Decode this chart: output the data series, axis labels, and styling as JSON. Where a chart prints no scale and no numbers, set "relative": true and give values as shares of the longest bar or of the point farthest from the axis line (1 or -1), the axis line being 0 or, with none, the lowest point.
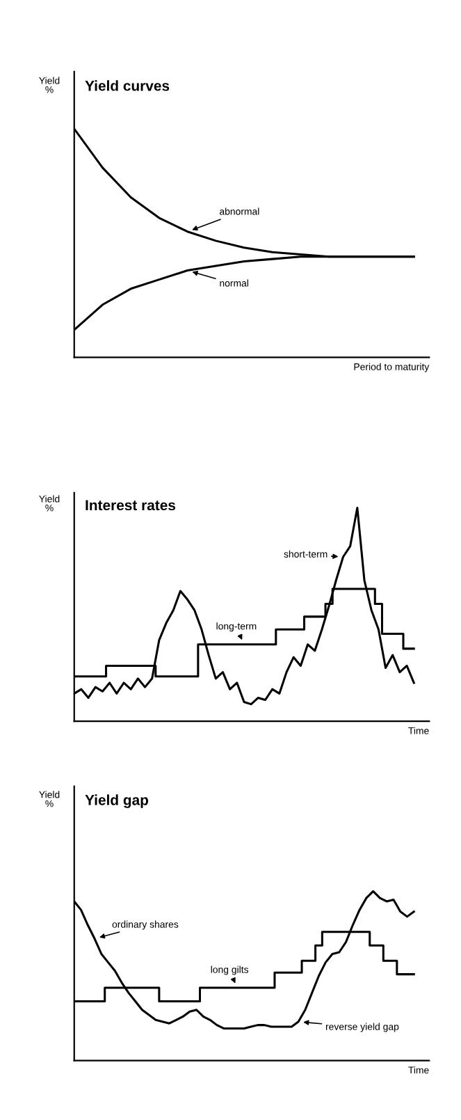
{
  "chart_data": [
    {
      "type": "line",
      "title": "Yield curves",
      "ylabel": "Yield\n%",
      "xlabel": "Period to maturity",
      "relative": true,
      "categories": [
        null,
        null,
        null,
        null,
        null,
        null,
        null,
        null,
        null,
        null,
        null,
        null,
        null
      ],
      "series": [
        {
          "name": "abnormal",
          "color": "#000000",
          "values": [
            1.0,
            0.83,
            0.7,
            0.61,
            0.55,
            0.51,
            0.48,
            0.46,
            0.45,
            0.44,
            0.44,
            0.44,
            0.44
          ]
        },
        {
          "name": "normal",
          "color": "#000000",
          "values": [
            0.12,
            0.23,
            0.3,
            0.34,
            0.38,
            0.4,
            0.42,
            0.43,
            0.44,
            0.44,
            0.44,
            0.44,
            0.44
          ]
        }
      ]
    },
    {
      "type": "line",
      "title": "Interest rates",
      "ylabel": "Yield\n%",
      "xlabel": "Time",
      "relative": true,
      "categories": [
        null,
        null,
        null,
        null,
        null,
        null,
        null,
        null,
        null,
        null,
        null,
        null,
        null,
        null,
        null,
        null,
        null,
        null,
        null,
        null,
        null,
        null,
        null,
        null,
        null,
        null,
        null,
        null,
        null,
        null,
        null,
        null,
        null,
        null,
        null,
        null,
        null,
        null,
        null,
        null,
        null,
        null,
        null,
        null,
        null,
        null,
        null,
        null,
        null
      ],
      "series": [
        {
          "name": "short-term",
          "color": "#000000",
          "values": [
            0.13,
            0.15,
            0.11,
            0.16,
            0.14,
            0.18,
            0.13,
            0.18,
            0.15,
            0.2,
            0.16,
            0.2,
            0.38,
            0.46,
            0.52,
            0.61,
            0.57,
            0.52,
            0.43,
            0.31,
            0.2,
            0.23,
            0.15,
            0.18,
            0.09,
            0.08,
            0.11,
            0.1,
            0.15,
            0.13,
            0.23,
            0.3,
            0.26,
            0.36,
            0.33,
            0.43,
            0.54,
            0.66,
            0.77,
            0.82,
            1.0,
            0.66,
            0.52,
            0.43,
            0.25,
            0.31,
            0.23,
            0.26,
            0.18
          ]
        },
        {
          "name": "long-term",
          "type": "step",
          "color": "#000000",
          "values": [
            0.21,
            0.21,
            0.21,
            0.21,
            0.21,
            0.26,
            0.26,
            0.26,
            0.26,
            0.26,
            0.26,
            0.26,
            0.21,
            0.21,
            0.21,
            0.21,
            0.21,
            0.21,
            0.36,
            0.36,
            0.36,
            0.36,
            0.36,
            0.36,
            0.36,
            0.36,
            0.36,
            0.36,
            0.36,
            0.43,
            0.43,
            0.43,
            0.43,
            0.49,
            0.49,
            0.49,
            0.55,
            0.62,
            0.62,
            0.62,
            0.62,
            0.62,
            0.62,
            0.55,
            0.41,
            0.41,
            0.41,
            0.34,
            0.34
          ]
        }
      ]
    },
    {
      "type": "line",
      "title": "Yield gap",
      "ylabel": "Yield\n%",
      "xlabel": "Time",
      "relative": true,
      "categories": [
        null,
        null,
        null,
        null,
        null,
        null,
        null,
        null,
        null,
        null,
        null,
        null,
        null,
        null,
        null,
        null,
        null,
        null,
        null,
        null,
        null,
        null,
        null,
        null,
        null,
        null,
        null,
        null,
        null,
        null,
        null,
        null,
        null,
        null,
        null,
        null,
        null,
        null,
        null,
        null,
        null,
        null,
        null,
        null,
        null,
        null,
        null,
        null,
        null,
        null,
        null
      ],
      "series": [
        {
          "name": "ordinary shares",
          "color": "#000000",
          "values": [
            0.94,
            0.89,
            0.8,
            0.72,
            0.63,
            0.58,
            0.53,
            0.46,
            0.4,
            0.35,
            0.3,
            0.27,
            0.24,
            0.23,
            0.22,
            0.24,
            0.26,
            0.29,
            0.3,
            0.26,
            0.24,
            0.21,
            0.19,
            0.19,
            0.19,
            0.19,
            0.2,
            0.21,
            0.21,
            0.2,
            0.2,
            0.2,
            0.2,
            0.23,
            0.3,
            0.4,
            0.5,
            0.58,
            0.63,
            0.64,
            0.7,
            0.8,
            0.89,
            0.96,
            1.0,
            0.96,
            0.94,
            0.95,
            0.88,
            0.85,
            0.88
          ]
        },
        {
          "name": "long gilts",
          "type": "step",
          "color": "#000000",
          "values": [
            0.35,
            0.35,
            0.35,
            0.35,
            0.35,
            0.43,
            0.43,
            0.43,
            0.43,
            0.43,
            0.43,
            0.43,
            0.43,
            0.35,
            0.35,
            0.35,
            0.35,
            0.35,
            0.35,
            0.43,
            0.43,
            0.43,
            0.43,
            0.43,
            0.43,
            0.43,
            0.43,
            0.43,
            0.43,
            0.43,
            0.52,
            0.52,
            0.52,
            0.52,
            0.59,
            0.59,
            0.68,
            0.76,
            0.76,
            0.76,
            0.76,
            0.76,
            0.76,
            0.76,
            0.68,
            0.68,
            0.59,
            0.59,
            0.51,
            0.51,
            0.51
          ]
        }
      ],
      "annotations": [
        "reverse yield gap"
      ]
    }
  ]
}
